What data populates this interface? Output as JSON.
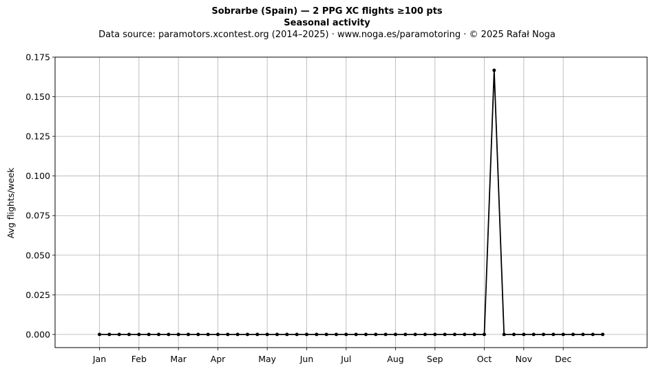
{
  "chart_data": {
    "type": "line",
    "title": "Sobrarbe (Spain)  —  2 PPG XC flights ≥100 pts",
    "subtitle": "Seasonal activity",
    "source_line": "Data source: paramotors.xcontest.org (2014–2025)  ·  www.noga.es/paramotoring  ·  © 2025 Rafał Noga",
    "xlabel": "",
    "ylabel": "Avg flights/week",
    "x_ticks": [
      {
        "label": "Jan",
        "week": 1
      },
      {
        "label": "Feb",
        "week": 5
      },
      {
        "label": "Mar",
        "week": 9
      },
      {
        "label": "Apr",
        "week": 13
      },
      {
        "label": "May",
        "week": 18
      },
      {
        "label": "Jun",
        "week": 22
      },
      {
        "label": "Jul",
        "week": 26
      },
      {
        "label": "Aug",
        "week": 31
      },
      {
        "label": "Sep",
        "week": 35
      },
      {
        "label": "Oct",
        "week": 40
      },
      {
        "label": "Nov",
        "week": 44
      },
      {
        "label": "Dec",
        "week": 48
      }
    ],
    "x": [
      1,
      2,
      3,
      4,
      5,
      6,
      7,
      8,
      9,
      10,
      11,
      12,
      13,
      14,
      15,
      16,
      17,
      18,
      19,
      20,
      21,
      22,
      23,
      24,
      25,
      26,
      27,
      28,
      29,
      30,
      31,
      32,
      33,
      34,
      35,
      36,
      37,
      38,
      39,
      40,
      41,
      42,
      43,
      44,
      45,
      46,
      47,
      48,
      49,
      50,
      51,
      52
    ],
    "series": [
      {
        "values": [
          0,
          0,
          0,
          0,
          0,
          0,
          0,
          0,
          0,
          0,
          0,
          0,
          0,
          0,
          0,
          0,
          0,
          0,
          0,
          0,
          0,
          0,
          0,
          0,
          0,
          0,
          0,
          0,
          0,
          0,
          0,
          0,
          0,
          0,
          0,
          0,
          0,
          0,
          0,
          0,
          0.1667,
          0,
          0,
          0,
          0,
          0,
          0,
          0,
          0,
          0,
          0,
          0
        ],
        "color": "#000000"
      }
    ],
    "xlim": [
      -3.5,
      56.5
    ],
    "ylim": [
      -0.0083,
      0.175
    ],
    "y_ticks": [
      "0.000",
      "0.025",
      "0.050",
      "0.075",
      "0.100",
      "0.125",
      "0.150",
      "0.175"
    ],
    "grid": true,
    "legend": "none"
  }
}
